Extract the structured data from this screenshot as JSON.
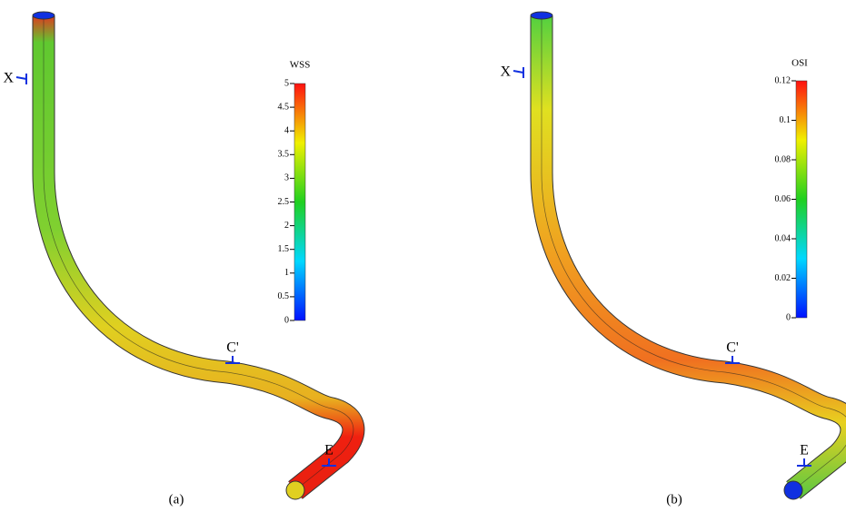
{
  "panels": [
    {
      "caption": "(a)",
      "markers": [
        "X",
        "C'",
        "E"
      ],
      "colorbar": {
        "title": "WSS",
        "lim": [
          0,
          5
        ],
        "ticks": [
          0,
          0.5,
          1,
          1.5,
          2,
          2.5,
          3,
          3.5,
          4,
          4.5,
          5
        ]
      }
    },
    {
      "caption": "(b)",
      "markers": [
        "X",
        "C'",
        "E"
      ],
      "colorbar": {
        "title": "OSI",
        "lim": [
          0,
          0.12
        ],
        "ticks": [
          0,
          0.02,
          0.04,
          0.06,
          0.08,
          0.1,
          0.12
        ]
      }
    }
  ]
}
